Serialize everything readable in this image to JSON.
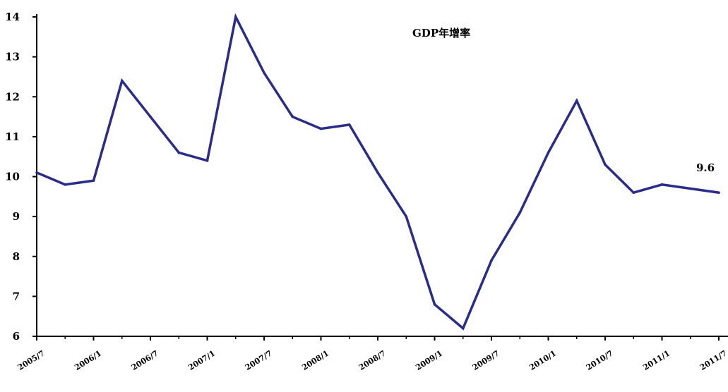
{
  "chart_data": {
    "type": "line",
    "title": "",
    "xlabel": "",
    "ylabel": "",
    "ylim": [
      6,
      14
    ],
    "yticks": [
      6,
      7,
      8,
      9,
      10,
      11,
      12,
      13,
      14
    ],
    "grid": false,
    "legend_position": "top-right",
    "x_tick_labels": [
      "2005/7",
      "2006/1",
      "2006/7",
      "2007/1",
      "2007/7",
      "2008/1",
      "2008/7",
      "2009/1",
      "2009/7",
      "2010/1",
      "2010/7",
      "2011/1",
      "2011/7"
    ],
    "categories": [
      "2005/7",
      "2005/10",
      "2006/1",
      "2006/4",
      "2006/7",
      "2006/10",
      "2007/1",
      "2007/4",
      "2007/7",
      "2007/10",
      "2008/1",
      "2008/4",
      "2008/7",
      "2008/10",
      "2009/1",
      "2009/4",
      "2009/7",
      "2009/10",
      "2010/1",
      "2010/4",
      "2010/7",
      "2010/10",
      "2011/1",
      "2011/4",
      "2011/7"
    ],
    "series": [
      {
        "name": "GDP年增率",
        "color": "#2b2b8a",
        "values": [
          10.1,
          9.8,
          9.9,
          12.4,
          11.5,
          10.6,
          10.4,
          14.0,
          12.6,
          11.5,
          11.2,
          11.3,
          10.1,
          9.0,
          6.8,
          6.2,
          7.9,
          9.1,
          10.6,
          11.9,
          10.3,
          9.6,
          9.8,
          9.7,
          9.6
        ]
      }
    ],
    "annotations": [
      {
        "text": "9.6"
      }
    ]
  }
}
